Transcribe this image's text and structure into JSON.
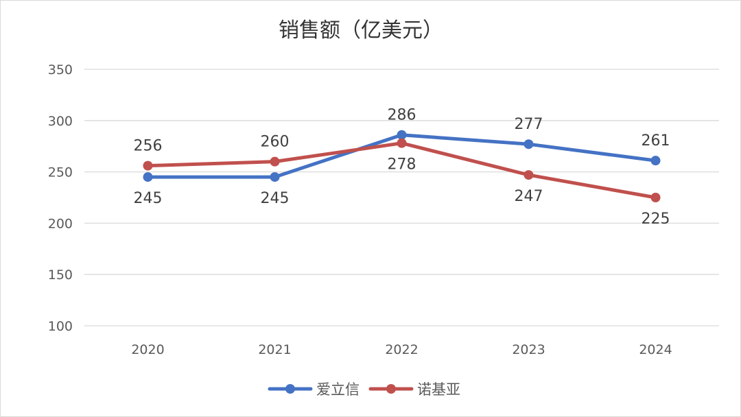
{
  "chart_data": {
    "type": "line",
    "title": "销售额（亿美元）",
    "categories": [
      "2020",
      "2021",
      "2022",
      "2023",
      "2024"
    ],
    "series": [
      {
        "name": "爱立信",
        "values": [
          245,
          245,
          286,
          277,
          261
        ],
        "color": "#4472c4",
        "labels": [
          "245",
          "245",
          "286",
          "277",
          "261"
        ],
        "label_positions": [
          "below",
          "below",
          "above",
          "above",
          "above"
        ]
      },
      {
        "name": "诺基亚",
        "values": [
          256,
          260,
          278,
          247,
          225
        ],
        "color": "#c0504d",
        "labels": [
          "256",
          "260",
          "278",
          "247",
          "225"
        ],
        "label_positions": [
          "above",
          "above",
          "below",
          "below",
          "below"
        ]
      }
    ],
    "ylim": [
      100,
      350
    ],
    "yticks": [
      100,
      150,
      200,
      250,
      300,
      350
    ],
    "ytick_labels": [
      "100",
      "150",
      "200",
      "250",
      "300",
      "350"
    ],
    "grid": true,
    "legend_position": "bottom"
  }
}
